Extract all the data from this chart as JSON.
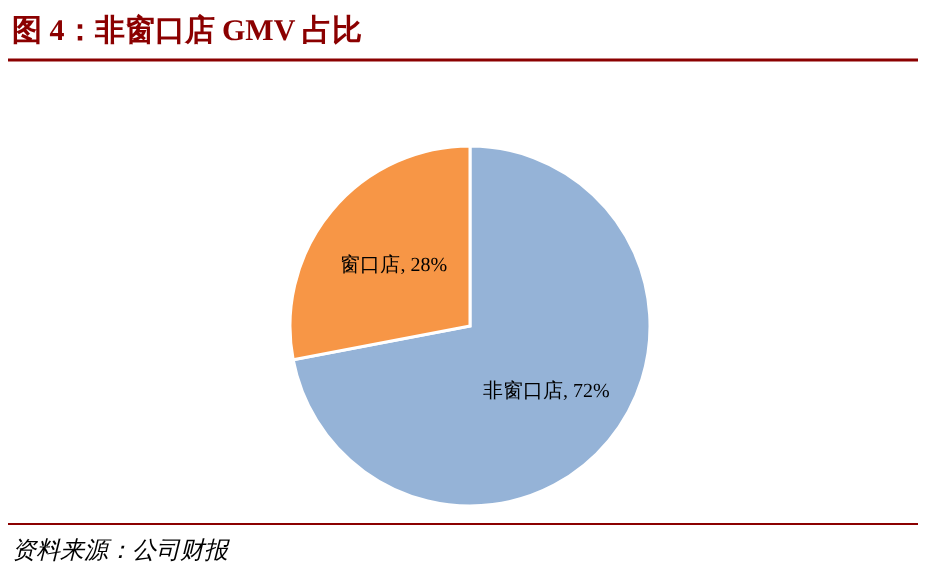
{
  "chart_data": {
    "type": "pie",
    "title": "图 4：非窗口店 GMV 占比",
    "categories": [
      "非窗口店",
      "窗口店"
    ],
    "values": [
      72,
      28
    ],
    "value_labels": [
      "72%",
      "28%"
    ],
    "colors": [
      "#95b3d7",
      "#f79646"
    ],
    "legend": false,
    "annotations": [
      "资料来源：公司财报"
    ]
  }
}
